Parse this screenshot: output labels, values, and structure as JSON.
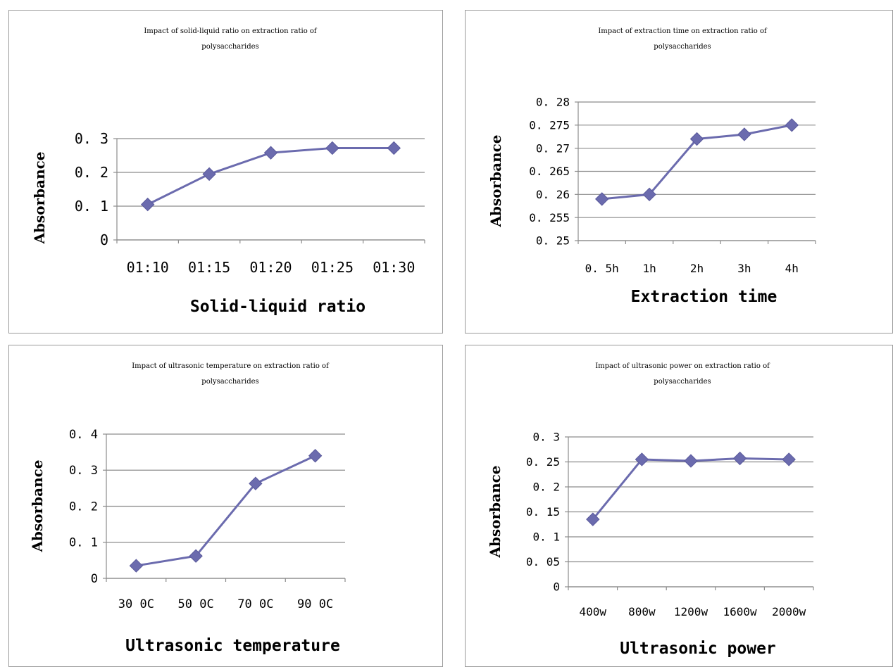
{
  "chart_data": [
    {
      "type": "line",
      "title": [
        "Impact of solid-liquid ratio on extraction ratio of",
        "polysaccharides"
      ],
      "xlabel": "Solid-liquid ratio",
      "ylabel": "Absorbance",
      "categories": [
        "01:10",
        "01:15",
        "01:20",
        "01:25",
        "01:30"
      ],
      "values": [
        0.105,
        0.195,
        0.258,
        0.272,
        0.272
      ],
      "ylim": [
        0,
        0.3
      ],
      "yticks": [
        0,
        0.1,
        0.2,
        0.3
      ],
      "ytick_labels": [
        "0",
        "0. 1",
        "0. 2",
        "0. 3"
      ],
      "grid": true,
      "color": "#6B6BAE"
    },
    {
      "type": "line",
      "title": [
        "Impact of extraction time on extraction ratio of",
        "polysaccharides"
      ],
      "xlabel": "Extraction time",
      "ylabel": "Absorbance",
      "categories": [
        "0. 5h",
        "1h",
        "2h",
        "3h",
        "4h"
      ],
      "values": [
        0.259,
        0.26,
        0.272,
        0.273,
        0.275
      ],
      "ylim": [
        0.25,
        0.28
      ],
      "yticks": [
        0.25,
        0.255,
        0.26,
        0.265,
        0.27,
        0.275,
        0.28
      ],
      "ytick_labels": [
        "0. 25",
        "0. 255",
        "0. 26",
        "0. 265",
        "0. 27",
        "0. 275",
        "0. 28"
      ],
      "grid": true,
      "color": "#6B6BAE"
    },
    {
      "type": "line",
      "title": [
        "Impact of ultrasonic temperature on extraction ratio of",
        "polysaccharides"
      ],
      "xlabel": "Ultrasonic temperature",
      "ylabel": "Absorbance",
      "categories": [
        "30 0C",
        "50 0C",
        "70 0C",
        "90 0C"
      ],
      "values": [
        0.035,
        0.062,
        0.263,
        0.34
      ],
      "ylim": [
        0,
        0.4
      ],
      "yticks": [
        0,
        0.1,
        0.2,
        0.3,
        0.4
      ],
      "ytick_labels": [
        "0",
        "0. 1",
        "0. 2",
        "0. 3",
        "0. 4"
      ],
      "grid": true,
      "color": "#6B6BAE"
    },
    {
      "type": "line",
      "title": [
        "Impact of ultrasonic power on extraction ratio of",
        "polysaccharides"
      ],
      "xlabel": "Ultrasonic power",
      "ylabel": "Absorbance",
      "categories": [
        "400w",
        "800w",
        "1200w",
        "1600w",
        "2000w"
      ],
      "values": [
        0.135,
        0.255,
        0.252,
        0.257,
        0.255
      ],
      "ylim": [
        0,
        0.3
      ],
      "yticks": [
        0,
        0.05,
        0.1,
        0.15,
        0.2,
        0.25,
        0.3
      ],
      "ytick_labels": [
        "0",
        "0. 05",
        "0. 1",
        "0. 15",
        "0. 2",
        "0. 25",
        "0. 3"
      ],
      "grid": true,
      "color": "#6B6BAE"
    }
  ]
}
